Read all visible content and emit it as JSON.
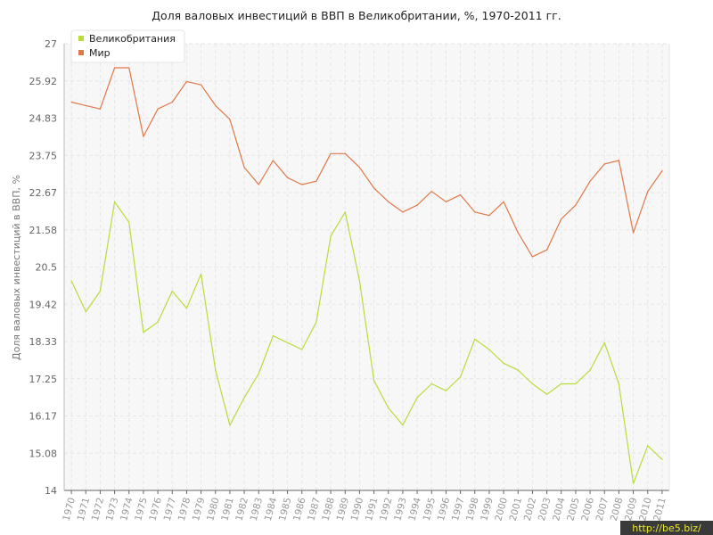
{
  "chart_data": {
    "type": "line",
    "title": "Доля валовых инвестиций в ВВП в Великобритании, %, 1970-2011 гг.",
    "ylabel": "Доля валовых инвестиций в ВВП, %",
    "ylim": [
      14,
      27
    ],
    "yticks": [
      "14",
      "15.08",
      "16.17",
      "17.25",
      "18.33",
      "19.42",
      "20.5",
      "21.58",
      "22.67",
      "23.75",
      "24.83",
      "25.92",
      "27"
    ],
    "grid": true,
    "legend_position": "top-left",
    "x": [
      1970,
      1971,
      1972,
      1973,
      1974,
      1975,
      1976,
      1977,
      1978,
      1979,
      1980,
      1981,
      1982,
      1983,
      1984,
      1985,
      1986,
      1987,
      1988,
      1989,
      1990,
      1991,
      1992,
      1993,
      1994,
      1995,
      1996,
      1997,
      1998,
      1999,
      2000,
      2001,
      2002,
      2003,
      2004,
      2005,
      2006,
      2007,
      2008,
      2009,
      2010,
      2011
    ],
    "series": [
      {
        "name": "Великобритания",
        "color": "#b8dc3c",
        "values": [
          20.1,
          19.2,
          19.8,
          22.4,
          21.8,
          18.6,
          18.9,
          19.8,
          19.3,
          20.3,
          17.5,
          15.9,
          16.7,
          17.4,
          18.5,
          18.3,
          18.1,
          18.9,
          21.4,
          22.1,
          20.1,
          17.2,
          16.4,
          15.9,
          16.7,
          17.1,
          16.9,
          17.3,
          18.4,
          18.1,
          17.7,
          17.5,
          17.1,
          16.8,
          17.1,
          17.1,
          17.5,
          18.3,
          17.1,
          14.2,
          15.3,
          14.9
        ]
      },
      {
        "name": "Мир",
        "color": "#e07848",
        "values": [
          25.3,
          25.2,
          25.1,
          26.3,
          26.3,
          24.3,
          25.1,
          25.3,
          25.9,
          25.8,
          25.2,
          24.8,
          23.4,
          22.9,
          23.6,
          23.1,
          22.9,
          23.0,
          23.8,
          23.8,
          23.4,
          22.8,
          22.4,
          22.1,
          22.3,
          22.7,
          22.4,
          22.6,
          22.1,
          22.0,
          22.4,
          21.5,
          20.8,
          21.0,
          21.9,
          22.3,
          23.0,
          23.5,
          23.6,
          21.5,
          22.7,
          23.3
        ]
      }
    ]
  },
  "watermark": "http://be5.biz/"
}
